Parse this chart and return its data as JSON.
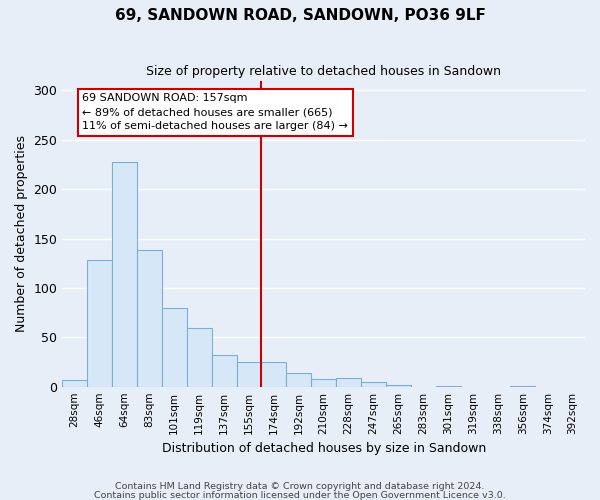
{
  "title": "69, SANDOWN ROAD, SANDOWN, PO36 9LF",
  "subtitle": "Size of property relative to detached houses in Sandown",
  "xlabel": "Distribution of detached houses by size in Sandown",
  "ylabel": "Number of detached properties",
  "bar_labels": [
    "28sqm",
    "46sqm",
    "64sqm",
    "83sqm",
    "101sqm",
    "119sqm",
    "137sqm",
    "155sqm",
    "174sqm",
    "192sqm",
    "210sqm",
    "228sqm",
    "247sqm",
    "265sqm",
    "283sqm",
    "301sqm",
    "319sqm",
    "338sqm",
    "356sqm",
    "374sqm",
    "392sqm"
  ],
  "bar_values": [
    7,
    128,
    228,
    138,
    80,
    59,
    32,
    25,
    25,
    14,
    8,
    9,
    5,
    2,
    0,
    1,
    0,
    0,
    1,
    0,
    0
  ],
  "bar_color": "#d6e8f7",
  "bar_edge_color": "#7ab0d4",
  "reference_line_color": "#cc0000",
  "annotation_title": "69 SANDOWN ROAD: 157sqm",
  "annotation_line1": "← 89% of detached houses are smaller (665)",
  "annotation_line2": "11% of semi-detached houses are larger (84) →",
  "annotation_box_facecolor": "#ffffff",
  "annotation_box_edgecolor": "#cc0000",
  "ylim": [
    0,
    310
  ],
  "yticks": [
    0,
    50,
    100,
    150,
    200,
    250,
    300
  ],
  "footnote1": "Contains HM Land Registry data © Crown copyright and database right 2024.",
  "footnote2": "Contains public sector information licensed under the Open Government Licence v3.0.",
  "background_color": "#e8eef8",
  "grid_color": "#ffffff",
  "title_fontsize": 11,
  "subtitle_fontsize": 9
}
